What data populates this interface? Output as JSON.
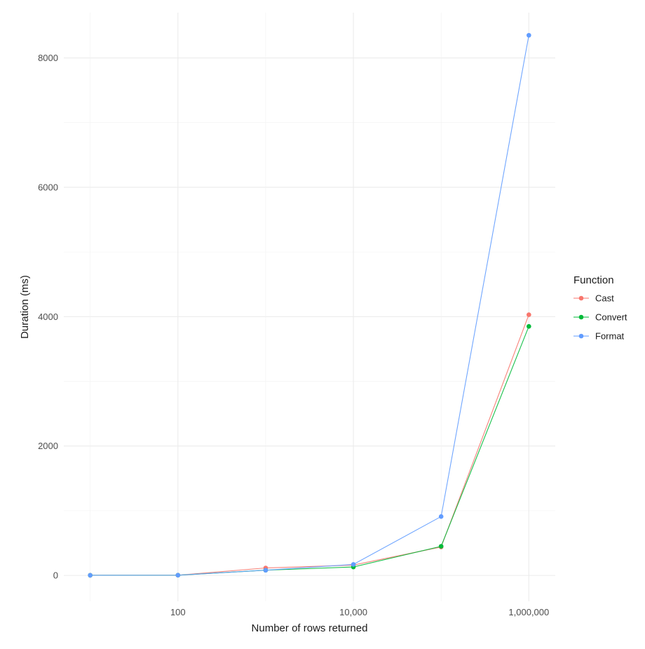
{
  "chart_data": {
    "type": "line",
    "x_scale": "log10",
    "xlabel": "Number of rows returned",
    "ylabel": "Duration (ms)",
    "x_ticks": [
      {
        "value": 100,
        "label": "100"
      },
      {
        "value": 10000,
        "label": "10,000"
      },
      {
        "value": 1000000,
        "label": "1,000,000"
      }
    ],
    "y_ticks": [
      {
        "value": 0,
        "label": "0"
      },
      {
        "value": 2000,
        "label": "2000"
      },
      {
        "value": 4000,
        "label": "4000"
      },
      {
        "value": 6000,
        "label": "6000"
      },
      {
        "value": 8000,
        "label": "8000"
      }
    ],
    "xlim": [
      5,
      2000000
    ],
    "ylim": [
      -400,
      8700
    ],
    "grid": true,
    "x": [
      10,
      100,
      1000,
      10000,
      100000,
      1000000
    ],
    "legend": {
      "title": "Function",
      "position": "right"
    },
    "series": [
      {
        "name": "Cast",
        "color": "#F8766D",
        "values": [
          2,
          3,
          115,
          160,
          440,
          4030
        ]
      },
      {
        "name": "Convert",
        "color": "#00BA38",
        "values": [
          2,
          3,
          80,
          130,
          450,
          3850
        ]
      },
      {
        "name": "Format",
        "color": "#619CFF",
        "values": [
          2,
          3,
          80,
          170,
          910,
          8350
        ]
      }
    ]
  }
}
